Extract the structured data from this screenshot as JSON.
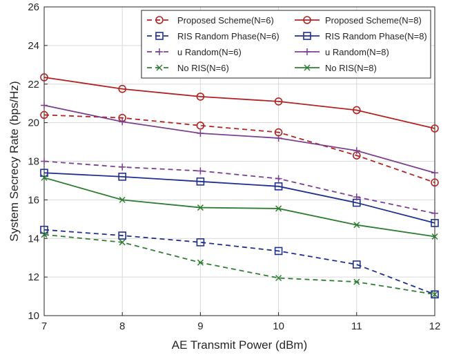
{
  "chart_data": {
    "type": "line",
    "xlabel": "AE Transmit Power (dBm)",
    "ylabel": "System Secrecy Rate (bps/Hz)",
    "xlim": [
      7,
      12
    ],
    "ylim": [
      10,
      26
    ],
    "x_ticks": [
      "7",
      "8",
      "9",
      "10",
      "11",
      "12"
    ],
    "y_ticks": [
      "10",
      "12",
      "14",
      "16",
      "18",
      "20",
      "22",
      "24",
      "26"
    ],
    "grid": true,
    "legend_position": "top-right",
    "x": [
      7,
      8,
      9,
      10,
      11,
      12
    ],
    "series": [
      {
        "name": "Proposed Scheme(N=6)",
        "color": "#b22222",
        "dash": "dashed",
        "marker": "circle",
        "values": [
          20.4,
          20.25,
          19.85,
          19.5,
          18.3,
          16.9
        ]
      },
      {
        "name": "Proposed Scheme(N=8)",
        "color": "#b22222",
        "dash": "solid",
        "marker": "circle",
        "values": [
          22.35,
          21.75,
          21.35,
          21.1,
          20.65,
          19.7
        ]
      },
      {
        "name": "RIS Random Phase(N=6)",
        "color": "#1f2f8f",
        "dash": "dashed",
        "marker": "square",
        "values": [
          14.45,
          14.15,
          13.8,
          13.35,
          12.65,
          11.1
        ]
      },
      {
        "name": "RIS Random Phase(N=8)",
        "color": "#1f2f8f",
        "dash": "solid",
        "marker": "square",
        "values": [
          17.4,
          17.2,
          16.95,
          16.7,
          15.85,
          14.8
        ]
      },
      {
        "name": "u Random(N=6)",
        "color": "#7b3f8f",
        "dash": "dashed",
        "marker": "plus",
        "values": [
          18.0,
          17.7,
          17.5,
          17.1,
          16.15,
          15.3
        ]
      },
      {
        "name": "u Random(N=8)",
        "color": "#7b3f8f",
        "dash": "solid",
        "marker": "plus",
        "values": [
          20.9,
          20.05,
          19.45,
          19.2,
          18.55,
          17.4
        ]
      },
      {
        "name": "No RIS(N=6)",
        "color": "#2e7d32",
        "dash": "dashed",
        "marker": "x",
        "values": [
          14.2,
          13.8,
          12.75,
          11.95,
          11.75,
          11.1
        ]
      },
      {
        "name": "No RIS(N=8)",
        "color": "#2e7d32",
        "dash": "solid",
        "marker": "x",
        "values": [
          17.15,
          16.0,
          15.6,
          15.55,
          14.7,
          14.1
        ]
      }
    ]
  }
}
